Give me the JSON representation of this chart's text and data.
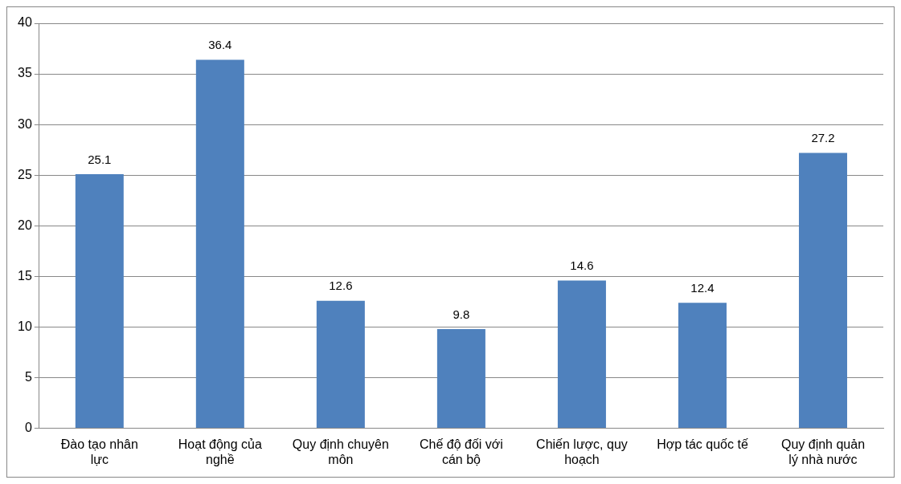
{
  "chart_data": {
    "type": "bar",
    "categories": [
      "Đào tạo nhân lực",
      "Hoạt động của nghề",
      "Quy định chuyên môn",
      "Chế độ đối với cán bộ",
      "Chiến lược, quy hoạch",
      "Hợp tác quốc tế",
      "Quy định quản lý nhà nước"
    ],
    "values": [
      25.1,
      36.4,
      12.6,
      9.8,
      14.6,
      12.4,
      27.2
    ],
    "color": "#4f81bd",
    "ylim": [
      0,
      40
    ],
    "yticks": [
      0,
      5,
      10,
      15,
      20,
      25,
      30,
      35,
      40
    ],
    "grid": "y",
    "legend": false,
    "data_labels": true
  }
}
